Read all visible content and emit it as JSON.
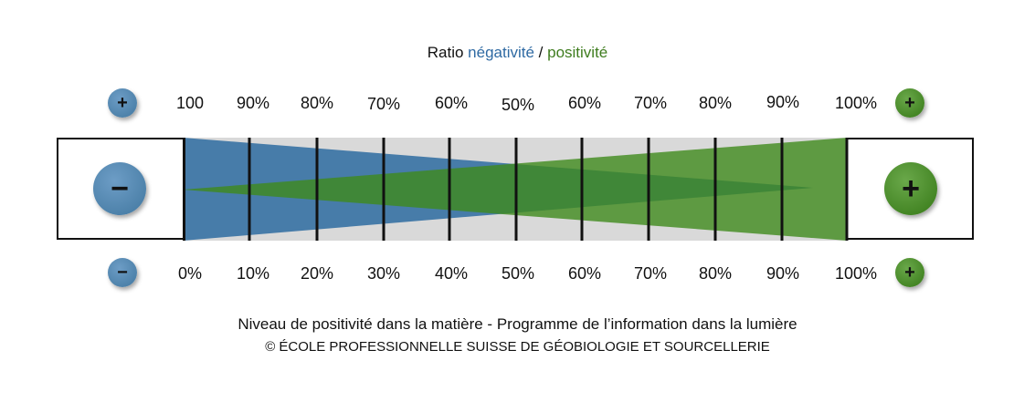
{
  "title": {
    "prefix": "Ratio ",
    "negative": "négativité",
    "separator": " / ",
    "positive": "positivité"
  },
  "top_scale": {
    "left_button": "+",
    "right_button": "+",
    "labels": [
      "100",
      "90%",
      "80%",
      "70%",
      "60%",
      "50%",
      "60%",
      "70%",
      "80%",
      "90%",
      "100%"
    ]
  },
  "bottom_scale": {
    "left_button": "−",
    "right_button": "+",
    "labels": [
      "0%",
      "10%",
      "20%",
      "30%",
      "40%",
      "50%",
      "60%",
      "70%",
      "80%",
      "90%",
      "100%"
    ]
  },
  "big_buttons": {
    "minus": "−",
    "plus": "+"
  },
  "footer": {
    "line1": "Niveau de positivité dans la matière - Programme de l’information dans la lumière",
    "line2": "© ÉCOLE PROFESSIONNELLE SUISSE DE GÉOBIOLOGIE ET SOURCELLERIE"
  },
  "colors": {
    "negative": "#3f77a6",
    "positive": "#3e8a1c",
    "band": "#d6d6d6"
  }
}
